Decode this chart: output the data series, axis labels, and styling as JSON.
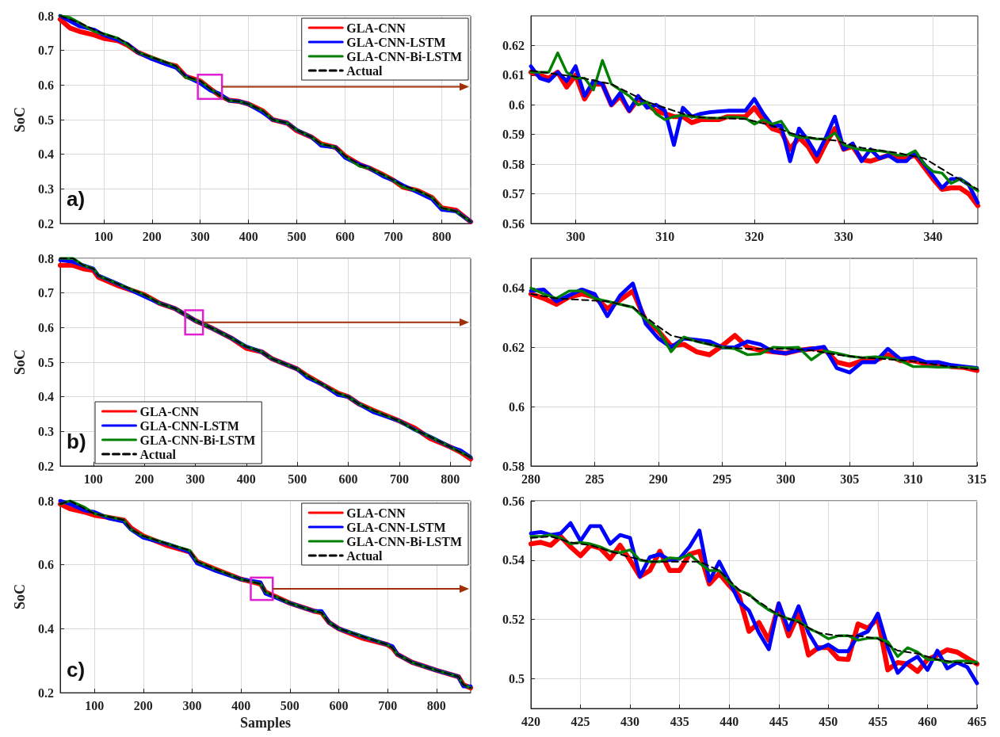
{
  "chart_data": [
    {
      "type": "line",
      "ylabel": "SoC",
      "annotations": [
        "a)"
      ],
      "xlim": [
        10,
        860
      ],
      "xticks": [
        100,
        200,
        300,
        400,
        500,
        600,
        700,
        800
      ],
      "ylim": [
        0.2,
        0.8
      ],
      "yticks": [
        0.2,
        0.3,
        0.4,
        0.5,
        0.6,
        0.7,
        0.8
      ],
      "grid": true,
      "legend": "top right",
      "x": [
        10,
        30,
        50,
        80,
        100,
        130,
        150,
        170,
        200,
        230,
        250,
        270,
        300,
        320,
        340,
        360,
        380,
        400,
        430,
        450,
        480,
        500,
        530,
        550,
        580,
        600,
        630,
        650,
        680,
        700,
        720,
        750,
        780,
        800,
        830,
        860
      ],
      "series": [
        {
          "name": "GLA-CNN",
          "color": "#ff0000",
          "values": [
            0.79,
            0.765,
            0.755,
            0.745,
            0.735,
            0.728,
            0.715,
            0.695,
            0.678,
            0.662,
            0.655,
            0.625,
            0.612,
            0.59,
            0.57,
            0.556,
            0.553,
            0.545,
            0.525,
            0.5,
            0.49,
            0.468,
            0.45,
            0.43,
            0.42,
            0.395,
            0.37,
            0.36,
            0.34,
            0.325,
            0.305,
            0.295,
            0.275,
            0.245,
            0.238,
            0.205
          ]
        },
        {
          "name": "GLA-CNN-LSTM",
          "color": "#0000ff",
          "values": [
            0.8,
            0.785,
            0.77,
            0.76,
            0.745,
            0.73,
            0.718,
            0.695,
            0.675,
            0.66,
            0.65,
            0.625,
            0.605,
            0.585,
            0.575,
            0.555,
            0.553,
            0.545,
            0.52,
            0.5,
            0.49,
            0.47,
            0.45,
            0.425,
            0.42,
            0.39,
            0.37,
            0.36,
            0.335,
            0.325,
            0.31,
            0.29,
            0.27,
            0.24,
            0.235,
            0.205
          ]
        },
        {
          "name": "GLA-CNN-Bi-LSTM",
          "color": "#008000",
          "values": [
            0.8,
            0.795,
            0.78,
            0.755,
            0.748,
            0.735,
            0.715,
            0.695,
            0.68,
            0.665,
            0.655,
            0.622,
            0.612,
            0.59,
            0.57,
            0.555,
            0.553,
            0.545,
            0.525,
            0.5,
            0.49,
            0.47,
            0.45,
            0.43,
            0.42,
            0.395,
            0.365,
            0.36,
            0.34,
            0.325,
            0.305,
            0.295,
            0.275,
            0.245,
            0.235,
            0.205
          ]
        },
        {
          "name": "Actual",
          "color": "#000000",
          "line_style": "dashed",
          "values": [
            0.8,
            0.79,
            0.78,
            0.76,
            0.748,
            0.735,
            0.72,
            0.695,
            0.68,
            0.665,
            0.655,
            0.625,
            0.612,
            0.59,
            0.57,
            0.555,
            0.553,
            0.545,
            0.525,
            0.5,
            0.49,
            0.47,
            0.45,
            0.43,
            0.42,
            0.395,
            0.37,
            0.36,
            0.34,
            0.325,
            0.31,
            0.295,
            0.275,
            0.245,
            0.235,
            0.205
          ]
        }
      ]
    },
    {
      "type": "line",
      "xlim": [
        295,
        345
      ],
      "xticks": [
        300,
        310,
        320,
        330,
        340
      ],
      "ylim": [
        0.56,
        0.63
      ],
      "yticks": [
        0.56,
        0.57,
        0.58,
        0.59,
        0.6,
        0.61,
        0.62
      ],
      "grid": true,
      "x": [
        295,
        296,
        297,
        298,
        299,
        300,
        301,
        302,
        303,
        304,
        305,
        306,
        307,
        308,
        309,
        310,
        311,
        312,
        313,
        314,
        315,
        316,
        317,
        318,
        319,
        320,
        321,
        322,
        323,
        324,
        325,
        326,
        327,
        328,
        329,
        330,
        331,
        332,
        333,
        334,
        335,
        336,
        337,
        338,
        339,
        340,
        341,
        342,
        343,
        344,
        345
      ],
      "series": [
        {
          "color": "#ff0000",
          "values": [
            0.611,
            0.61,
            0.609,
            0.611,
            0.606,
            0.61,
            0.602,
            0.607,
            0.607,
            0.6,
            0.603,
            0.598,
            0.602,
            0.6,
            0.598,
            0.597,
            0.596,
            0.596,
            0.594,
            0.595,
            0.595,
            0.595,
            0.596,
            0.596,
            0.596,
            0.599,
            0.595,
            0.592,
            0.591,
            0.585,
            0.589,
            0.586,
            0.581,
            0.587,
            0.592,
            0.585,
            0.586,
            0.5815,
            0.581,
            0.582,
            0.583,
            0.582,
            0.582,
            0.583,
            0.579,
            0.575,
            0.5715,
            0.572,
            0.572,
            0.57,
            0.566
          ]
        },
        {
          "color": "#0000ff",
          "values": [
            0.613,
            0.609,
            0.608,
            0.611,
            0.608,
            0.613,
            0.603,
            0.608,
            0.607,
            0.6,
            0.604,
            0.598,
            0.603,
            0.599,
            0.6,
            0.598,
            0.5865,
            0.599,
            0.596,
            0.597,
            0.5975,
            0.5978,
            0.598,
            0.598,
            0.598,
            0.602,
            0.597,
            0.593,
            0.593,
            0.581,
            0.592,
            0.588,
            0.583,
            0.589,
            0.596,
            0.585,
            0.587,
            0.581,
            0.585,
            0.582,
            0.583,
            0.581,
            0.581,
            0.584,
            0.58,
            0.576,
            0.572,
            0.575,
            0.575,
            0.573,
            0.567
          ]
        },
        {
          "color": "#008000",
          "values": [
            0.611,
            0.611,
            0.611,
            0.6175,
            0.611,
            0.609,
            0.609,
            0.605,
            0.615,
            0.607,
            0.605,
            0.603,
            0.6,
            0.601,
            0.597,
            0.595,
            0.596,
            0.5965,
            0.596,
            0.5958,
            0.5955,
            0.5955,
            0.5958,
            0.5958,
            0.5955,
            0.5935,
            0.595,
            0.5935,
            0.5945,
            0.59,
            0.589,
            0.589,
            0.5885,
            0.5885,
            0.5905,
            0.5865,
            0.5855,
            0.5848,
            0.5845,
            0.5845,
            0.584,
            0.583,
            0.583,
            0.5845,
            0.58,
            0.5775,
            0.577,
            0.5735,
            0.575,
            0.573,
            0.571
          ]
        },
        {
          "color": "#000000",
          "line_style": "dashed",
          "x": [
            295,
            300,
            304,
            308,
            312,
            314,
            319,
            322,
            324,
            326,
            329,
            332,
            336,
            339,
            342,
            345
          ],
          "values": [
            0.6115,
            0.6095,
            0.607,
            0.601,
            0.597,
            0.5958,
            0.5952,
            0.593,
            0.5905,
            0.589,
            0.588,
            0.5855,
            0.5838,
            0.582,
            0.5765,
            0.5715
          ]
        }
      ]
    },
    {
      "type": "line",
      "ylabel": "SoC",
      "annotations": [
        "b)"
      ],
      "xlim": [
        35,
        840
      ],
      "xticks": [
        100,
        200,
        300,
        400,
        500,
        600,
        700,
        800
      ],
      "ylim": [
        0.2,
        0.8
      ],
      "yticks": [
        0.2,
        0.3,
        0.4,
        0.5,
        0.6,
        0.7,
        0.8
      ],
      "grid": true,
      "legend": "bottom left",
      "x": [
        35,
        60,
        80,
        100,
        110,
        150,
        200,
        230,
        260,
        300,
        330,
        370,
        400,
        430,
        450,
        500,
        520,
        550,
        580,
        600,
        620,
        650,
        700,
        730,
        760,
        800,
        820,
        840
      ],
      "series": [
        {
          "name": "GLA-CNN",
          "color": "#ff0000",
          "values": [
            0.78,
            0.78,
            0.77,
            0.765,
            0.745,
            0.72,
            0.695,
            0.67,
            0.655,
            0.62,
            0.6,
            0.57,
            0.54,
            0.53,
            0.51,
            0.48,
            0.46,
            0.435,
            0.41,
            0.4,
            0.38,
            0.36,
            0.33,
            0.31,
            0.28,
            0.255,
            0.24,
            0.22
          ]
        },
        {
          "name": "GLA-CNN-LSTM",
          "color": "#0000ff",
          "values": [
            0.795,
            0.79,
            0.78,
            0.77,
            0.75,
            0.725,
            0.69,
            0.67,
            0.655,
            0.62,
            0.6,
            0.57,
            0.545,
            0.53,
            0.51,
            0.48,
            0.455,
            0.435,
            0.405,
            0.4,
            0.38,
            0.355,
            0.33,
            0.305,
            0.285,
            0.255,
            0.245,
            0.225
          ]
        },
        {
          "name": "GLA-CNN-Bi-LSTM",
          "color": "#008000",
          "values": [
            0.8,
            0.8,
            0.78,
            0.77,
            0.75,
            0.725,
            0.695,
            0.67,
            0.655,
            0.62,
            0.6,
            0.57,
            0.545,
            0.53,
            0.51,
            0.48,
            0.46,
            0.435,
            0.41,
            0.4,
            0.38,
            0.36,
            0.33,
            0.305,
            0.285,
            0.255,
            0.24,
            0.225
          ]
        },
        {
          "name": "Actual",
          "color": "#000000",
          "line_style": "dashed",
          "values": [
            0.8,
            0.8,
            0.78,
            0.77,
            0.75,
            0.725,
            0.695,
            0.67,
            0.655,
            0.62,
            0.6,
            0.57,
            0.545,
            0.53,
            0.51,
            0.48,
            0.46,
            0.435,
            0.41,
            0.4,
            0.38,
            0.36,
            0.33,
            0.305,
            0.285,
            0.255,
            0.24,
            0.225
          ]
        }
      ]
    },
    {
      "type": "line",
      "xlim": [
        280,
        315
      ],
      "xticks": [
        280,
        285,
        290,
        295,
        300,
        305,
        310,
        315
      ],
      "ylim": [
        0.58,
        0.65
      ],
      "yticks": [
        0.58,
        0.6,
        0.62,
        0.64
      ],
      "grid": true,
      "x": [
        280,
        281,
        282,
        283,
        284,
        285,
        286,
        287,
        288,
        289,
        290,
        291,
        292,
        293,
        294,
        295,
        296,
        297,
        298,
        299,
        300,
        301,
        302,
        303,
        304,
        305,
        306,
        307,
        308,
        309,
        310,
        311,
        312,
        313,
        314,
        315
      ],
      "series": [
        {
          "color": "#ff0000",
          "values": [
            0.638,
            0.6365,
            0.6345,
            0.637,
            0.638,
            0.637,
            0.633,
            0.636,
            0.639,
            0.629,
            0.6255,
            0.6205,
            0.621,
            0.6185,
            0.6175,
            0.6205,
            0.624,
            0.62,
            0.619,
            0.6185,
            0.618,
            0.619,
            0.6195,
            0.6195,
            0.615,
            0.614,
            0.6155,
            0.6155,
            0.6175,
            0.6155,
            0.6155,
            0.6145,
            0.6145,
            0.6135,
            0.6132,
            0.6122
          ]
        },
        {
          "color": "#0000ff",
          "values": [
            0.639,
            0.6395,
            0.6355,
            0.6375,
            0.6395,
            0.638,
            0.6305,
            0.6375,
            0.6415,
            0.628,
            0.623,
            0.62,
            0.623,
            0.6225,
            0.622,
            0.62,
            0.62,
            0.622,
            0.621,
            0.6185,
            0.618,
            0.619,
            0.6195,
            0.6202,
            0.613,
            0.6115,
            0.615,
            0.615,
            0.6195,
            0.616,
            0.6165,
            0.615,
            0.615,
            0.614,
            0.6135,
            0.613
          ]
        },
        {
          "color": "#008000",
          "values": [
            0.64,
            0.638,
            0.6365,
            0.639,
            0.639,
            0.6365,
            0.6355,
            0.6345,
            0.6335,
            0.6295,
            0.626,
            0.6185,
            0.6235,
            0.622,
            0.621,
            0.62,
            0.6195,
            0.6175,
            0.6178,
            0.62,
            0.6198,
            0.62,
            0.6158,
            0.6188,
            0.618,
            0.617,
            0.6165,
            0.6168,
            0.6165,
            0.6155,
            0.6135,
            0.6135,
            0.6133,
            0.6133,
            0.6133,
            0.613
          ]
        },
        {
          "color": "#000000",
          "line_style": "dashed",
          "x": [
            280,
            282,
            284,
            286,
            288,
            290,
            291,
            293,
            295,
            297,
            300,
            302,
            304,
            306,
            308,
            310,
            312,
            315
          ],
          "values": [
            0.638,
            0.6365,
            0.636,
            0.6355,
            0.6335,
            0.627,
            0.624,
            0.622,
            0.62,
            0.6195,
            0.6195,
            0.619,
            0.6175,
            0.6165,
            0.616,
            0.6153,
            0.614,
            0.6125
          ]
        }
      ]
    },
    {
      "type": "line",
      "xlabel": "Samples",
      "ylabel": "SoC",
      "annotations": [
        "c)"
      ],
      "xlim": [
        30,
        870
      ],
      "xticks": [
        100,
        200,
        300,
        400,
        500,
        600,
        700,
        800
      ],
      "ylim": [
        0.2,
        0.8
      ],
      "yticks": [
        0.2,
        0.4,
        0.6,
        0.8
      ],
      "grid": true,
      "legend": "top right",
      "x": [
        30,
        50,
        80,
        100,
        130,
        160,
        175,
        200,
        250,
        295,
        310,
        350,
        400,
        440,
        450,
        500,
        550,
        565,
        580,
        600,
        650,
        700,
        710,
        720,
        750,
        800,
        845,
        855,
        870
      ],
      "series": [
        {
          "name": "GLA-CNN",
          "color": "#ff0000",
          "values": [
            0.79,
            0.775,
            0.765,
            0.755,
            0.748,
            0.74,
            0.715,
            0.69,
            0.66,
            0.64,
            0.61,
            0.585,
            0.555,
            0.54,
            0.515,
            0.48,
            0.455,
            0.45,
            0.42,
            0.4,
            0.37,
            0.35,
            0.34,
            0.32,
            0.295,
            0.27,
            0.25,
            0.225,
            0.215
          ]
        },
        {
          "name": "GLA-CNN-LSTM",
          "color": "#0000ff",
          "values": [
            0.8,
            0.79,
            0.77,
            0.765,
            0.745,
            0.735,
            0.71,
            0.685,
            0.665,
            0.64,
            0.605,
            0.58,
            0.555,
            0.545,
            0.51,
            0.48,
            0.455,
            0.455,
            0.42,
            0.4,
            0.375,
            0.35,
            0.345,
            0.32,
            0.295,
            0.27,
            0.25,
            0.22,
            0.22
          ]
        },
        {
          "name": "GLA-CNN-Bi-LSTM",
          "color": "#008000",
          "values": [
            0.79,
            0.8,
            0.78,
            0.76,
            0.75,
            0.74,
            0.71,
            0.69,
            0.665,
            0.645,
            0.61,
            0.585,
            0.555,
            0.54,
            0.515,
            0.48,
            0.455,
            0.45,
            0.42,
            0.4,
            0.375,
            0.35,
            0.34,
            0.32,
            0.295,
            0.27,
            0.25,
            0.225,
            0.215
          ]
        },
        {
          "name": "Actual",
          "color": "#000000",
          "line_style": "dashed",
          "values": [
            0.79,
            0.8,
            0.775,
            0.76,
            0.75,
            0.74,
            0.71,
            0.69,
            0.665,
            0.645,
            0.61,
            0.585,
            0.555,
            0.54,
            0.515,
            0.48,
            0.455,
            0.45,
            0.42,
            0.4,
            0.375,
            0.35,
            0.34,
            0.32,
            0.295,
            0.27,
            0.25,
            0.225,
            0.215
          ]
        }
      ]
    },
    {
      "type": "line",
      "xlim": [
        420,
        465
      ],
      "xticks": [
        420,
        425,
        430,
        435,
        440,
        445,
        450,
        455,
        460,
        465
      ],
      "ylim": [
        0.49,
        0.56
      ],
      "yticks": [
        0.5,
        0.52,
        0.54,
        0.56
      ],
      "grid": true,
      "x": [
        420,
        421,
        422,
        423,
        424,
        425,
        426,
        427,
        428,
        429,
        430,
        431,
        432,
        433,
        434,
        435,
        436,
        437,
        438,
        439,
        440,
        441,
        442,
        443,
        444,
        445,
        446,
        447,
        448,
        449,
        450,
        451,
        452,
        453,
        454,
        455,
        456,
        457,
        458,
        459,
        460,
        461,
        462,
        463,
        464,
        465
      ],
      "series": [
        {
          "color": "#ff0000",
          "values": [
            0.5455,
            0.546,
            0.545,
            0.548,
            0.5445,
            0.5415,
            0.545,
            0.544,
            0.5405,
            0.545,
            0.54,
            0.5345,
            0.5365,
            0.543,
            0.5365,
            0.5365,
            0.542,
            0.543,
            0.532,
            0.5355,
            0.5315,
            0.528,
            0.516,
            0.519,
            0.513,
            0.525,
            0.5145,
            0.522,
            0.508,
            0.5105,
            0.5105,
            0.5068,
            0.5065,
            0.5185,
            0.517,
            0.5205,
            0.503,
            0.5055,
            0.505,
            0.5025,
            0.5065,
            0.508,
            0.5098,
            0.509,
            0.507,
            0.505
          ]
        },
        {
          "color": "#0000ff",
          "values": [
            0.549,
            0.5495,
            0.5485,
            0.549,
            0.5525,
            0.5465,
            0.5515,
            0.5515,
            0.5455,
            0.5485,
            0.5475,
            0.5345,
            0.541,
            0.542,
            0.54,
            0.5405,
            0.5445,
            0.55,
            0.533,
            0.5395,
            0.533,
            0.526,
            0.523,
            0.5155,
            0.51,
            0.5255,
            0.5165,
            0.5245,
            0.5155,
            0.51,
            0.5115,
            0.5093,
            0.5093,
            0.5145,
            0.516,
            0.522,
            0.5105,
            0.502,
            0.5055,
            0.5075,
            0.503,
            0.5095,
            0.5035,
            0.5055,
            0.504,
            0.4985
          ]
        },
        {
          "color": "#008000",
          "values": [
            0.548,
            0.548,
            0.5485,
            0.5475,
            0.5455,
            0.546,
            0.5455,
            0.5445,
            0.543,
            0.5425,
            0.5435,
            0.54,
            0.5395,
            0.5395,
            0.5408,
            0.5405,
            0.542,
            0.539,
            0.5365,
            0.5365,
            0.5325,
            0.5298,
            0.5285,
            0.5255,
            0.5232,
            0.5215,
            0.5202,
            0.5195,
            0.517,
            0.5155,
            0.5135,
            0.5145,
            0.5145,
            0.513,
            0.5137,
            0.5137,
            0.5125,
            0.5075,
            0.5105,
            0.509,
            0.5065,
            0.5065,
            0.5055,
            0.506,
            0.506,
            0.5055
          ]
        },
        {
          "color": "#000000",
          "line_style": "dashed",
          "x": [
            420,
            422,
            424,
            426,
            428,
            430,
            432,
            435,
            437,
            439,
            441,
            443,
            445,
            447,
            449,
            451,
            453,
            455,
            457,
            459,
            461,
            463,
            465
          ],
          "values": [
            0.5475,
            0.548,
            0.546,
            0.545,
            0.543,
            0.541,
            0.5395,
            0.5395,
            0.5395,
            0.5365,
            0.53,
            0.526,
            0.5215,
            0.519,
            0.5155,
            0.5145,
            0.5145,
            0.5135,
            0.5095,
            0.5085,
            0.5065,
            0.5055,
            0.505
          ]
        }
      ]
    }
  ]
}
